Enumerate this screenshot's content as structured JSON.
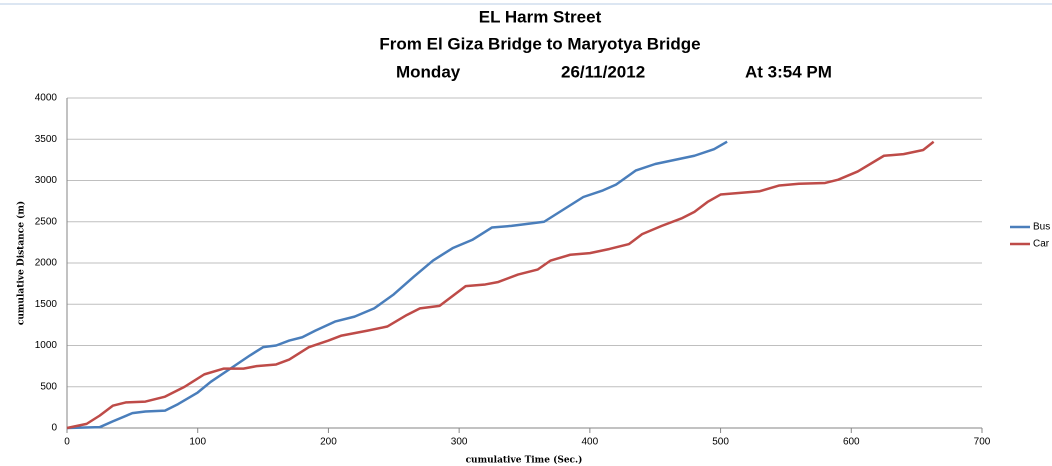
{
  "chart_data": {
    "type": "line",
    "title": [
      "EL Harm Street",
      "From El Giza Bridge to Maryotya Bridge"
    ],
    "subtitle": [
      "Monday",
      "26/11/2012",
      "At 3:54 PM"
    ],
    "x_label": "cumulative Time (Sec.)",
    "y_label": "cumulative Distance (m)",
    "xlim": [
      0,
      700
    ],
    "xticks": [
      0,
      100,
      200,
      300,
      400,
      500,
      600,
      700
    ],
    "ylim": [
      0,
      4000
    ],
    "yticks": [
      0,
      500,
      1000,
      1500,
      2000,
      2500,
      3000,
      3500,
      4000
    ],
    "grid": true,
    "legend": "right",
    "series": [
      {
        "name": "Bus",
        "color": "#4a7ebb",
        "x": [
          0,
          25,
          35,
          50,
          60,
          75,
          85,
          100,
          110,
          125,
          140,
          150,
          160,
          170,
          180,
          190,
          205,
          220,
          235,
          250,
          265,
          280,
          295,
          310,
          325,
          340,
          350,
          365,
          380,
          395,
          410,
          420,
          435,
          450,
          465,
          480,
          495,
          505
        ],
        "values": [
          0,
          10,
          80,
          180,
          200,
          210,
          290,
          430,
          560,
          720,
          880,
          980,
          1000,
          1060,
          1100,
          1180,
          1290,
          1350,
          1450,
          1620,
          1830,
          2030,
          2180,
          2280,
          2430,
          2450,
          2470,
          2500,
          2650,
          2800,
          2880,
          2950,
          3120,
          3200,
          3250,
          3300,
          3380,
          3470
        ]
      },
      {
        "name": "Car",
        "color": "#be4b48",
        "x": [
          0,
          15,
          25,
          35,
          45,
          60,
          75,
          90,
          105,
          120,
          135,
          145,
          160,
          170,
          185,
          200,
          210,
          230,
          245,
          260,
          270,
          285,
          295,
          305,
          320,
          330,
          345,
          360,
          370,
          385,
          400,
          415,
          430,
          440,
          455,
          470,
          480,
          490,
          500,
          515,
          530,
          545,
          560,
          580,
          590,
          605,
          625,
          640,
          655,
          663
        ],
        "values": [
          0,
          50,
          150,
          270,
          310,
          320,
          380,
          500,
          650,
          720,
          720,
          750,
          770,
          830,
          980,
          1060,
          1120,
          1180,
          1230,
          1370,
          1450,
          1480,
          1600,
          1720,
          1740,
          1770,
          1860,
          1920,
          2030,
          2100,
          2120,
          2170,
          2230,
          2350,
          2450,
          2540,
          2620,
          2740,
          2830,
          2850,
          2870,
          2940,
          2960,
          2970,
          3010,
          3110,
          3300,
          3320,
          3370,
          3470
        ]
      }
    ]
  }
}
